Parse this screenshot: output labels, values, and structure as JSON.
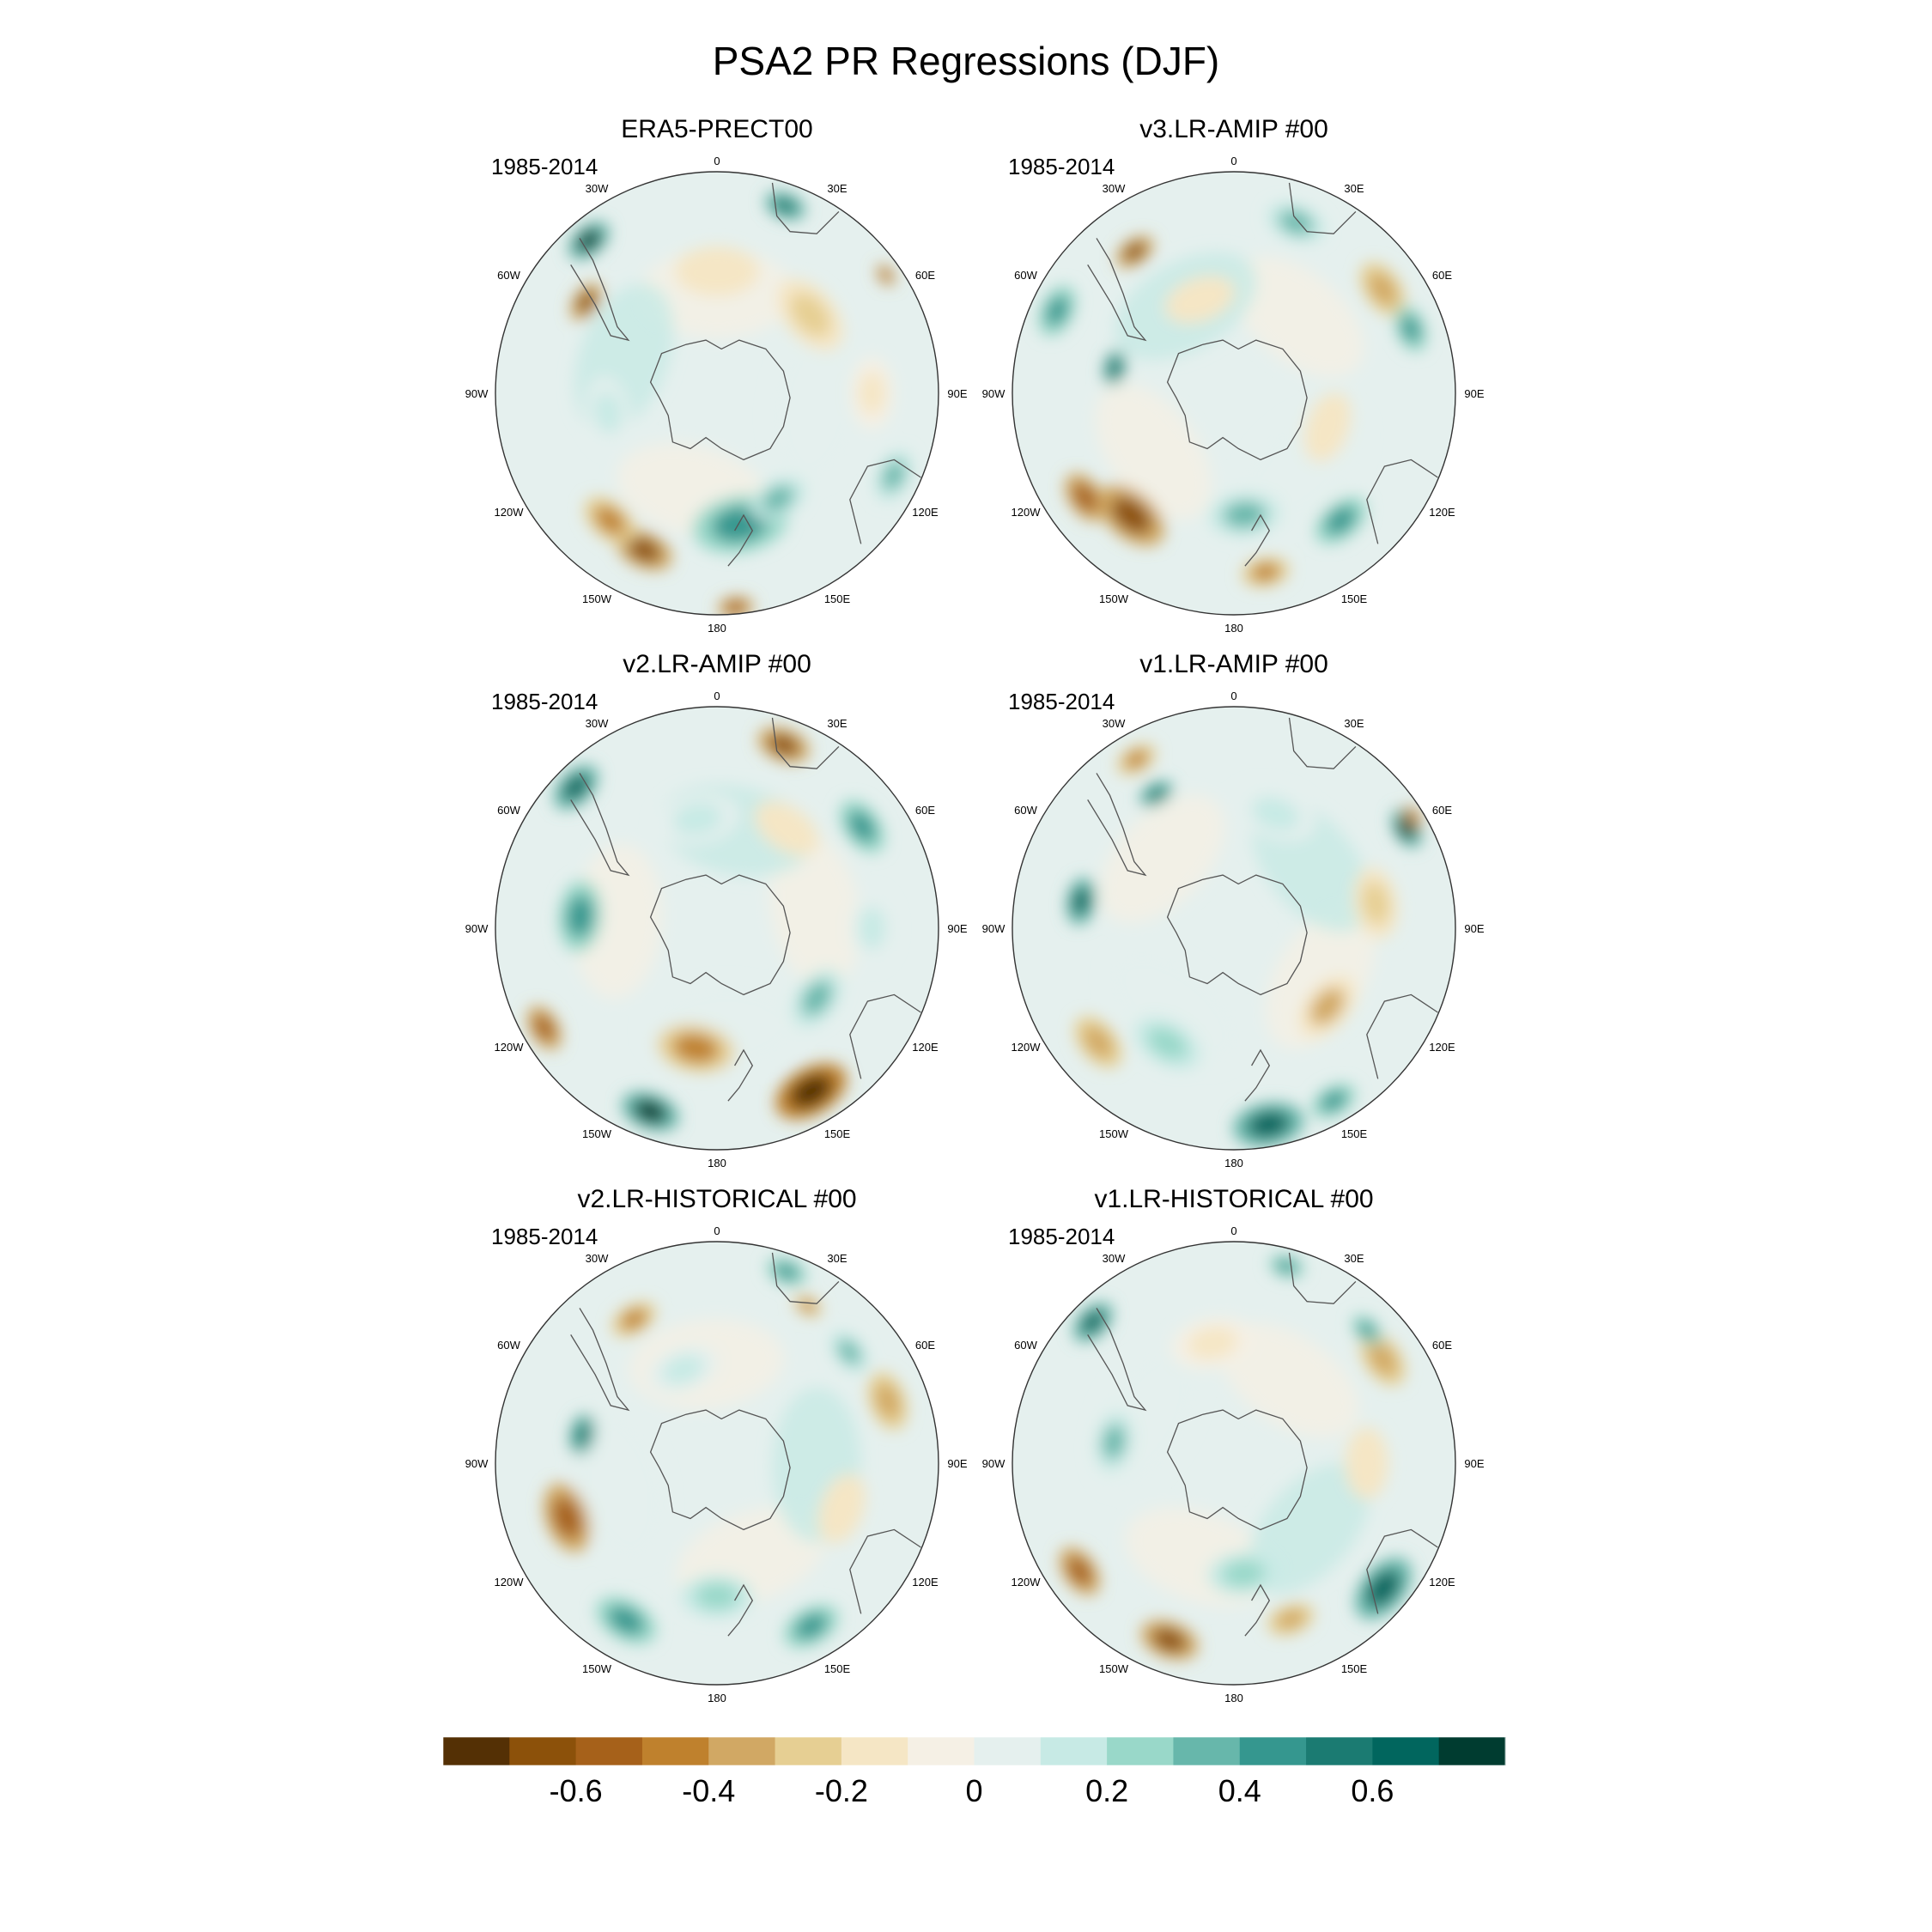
{
  "figure": {
    "title": "PSA2 PR Regressions (DJF)"
  },
  "chart_data": {
    "type": "heatmap",
    "projection": "south-polar-stereographic",
    "variable": "PR regression on PSA2",
    "season": "DJF",
    "longitude_labels": [
      "0",
      "30E",
      "60E",
      "90E",
      "120E",
      "150E",
      "180",
      "150W",
      "120W",
      "90W",
      "60W",
      "30W"
    ],
    "panels": [
      {
        "title": "ERA5-PRECT00",
        "period": "1985-2014",
        "features": [
          {
            "lon": -40,
            "r": 0.9,
            "size": 0.08,
            "value": 0.7
          },
          {
            "lon": -55,
            "r": 0.72,
            "size": 0.07,
            "value": -0.7
          },
          {
            "lon": 20,
            "r": 0.9,
            "size": 0.07,
            "value": 0.55
          },
          {
            "lon": 55,
            "r": 0.93,
            "size": 0.04,
            "value": -0.6
          },
          {
            "lon": -155,
            "r": 0.78,
            "size": 0.1,
            "value": -0.7
          },
          {
            "lon": -140,
            "r": 0.75,
            "size": 0.1,
            "value": -0.45
          },
          {
            "lon": 170,
            "r": 0.6,
            "size": 0.16,
            "value": 0.45
          },
          {
            "lon": 150,
            "r": 0.55,
            "size": 0.1,
            "value": 0.35
          },
          {
            "lon": 115,
            "r": 0.88,
            "size": 0.09,
            "value": 0.3
          },
          {
            "lon": 50,
            "r": 0.55,
            "size": 0.14,
            "value": -0.25
          },
          {
            "lon": 0,
            "r": 0.55,
            "size": 0.14,
            "value": -0.2
          },
          {
            "lon": -100,
            "r": 0.5,
            "size": 0.12,
            "value": 0.15
          },
          {
            "lon": 90,
            "r": 0.7,
            "size": 0.12,
            "value": -0.15
          },
          {
            "lon": 175,
            "r": 0.97,
            "size": 0.06,
            "value": -0.6
          }
        ]
      },
      {
        "title": "v3.LR-AMIP  #00",
        "period": "1985-2014",
        "features": [
          {
            "lon": -35,
            "r": 0.78,
            "size": 0.07,
            "value": -0.7
          },
          {
            "lon": -65,
            "r": 0.88,
            "size": 0.09,
            "value": 0.45
          },
          {
            "lon": -78,
            "r": 0.55,
            "size": 0.06,
            "value": 0.6
          },
          {
            "lon": -140,
            "r": 0.72,
            "size": 0.13,
            "value": -0.7
          },
          {
            "lon": -125,
            "r": 0.82,
            "size": 0.09,
            "value": -0.55
          },
          {
            "lon": 170,
            "r": 0.82,
            "size": 0.08,
            "value": -0.5
          },
          {
            "lon": 175,
            "r": 0.55,
            "size": 0.12,
            "value": 0.3
          },
          {
            "lon": 140,
            "r": 0.75,
            "size": 0.1,
            "value": 0.45
          },
          {
            "lon": 55,
            "r": 0.82,
            "size": 0.1,
            "value": -0.4
          },
          {
            "lon": 20,
            "r": 0.82,
            "size": 0.1,
            "value": 0.3
          },
          {
            "lon": 70,
            "r": 0.85,
            "size": 0.08,
            "value": 0.4
          },
          {
            "lon": -20,
            "r": 0.45,
            "size": 0.12,
            "value": -0.2
          },
          {
            "lon": 110,
            "r": 0.45,
            "size": 0.12,
            "value": -0.2
          }
        ]
      },
      {
        "title": "v2.LR-AMIP  #00",
        "period": "1985-2014",
        "features": [
          {
            "lon": -45,
            "r": 0.9,
            "size": 0.09,
            "value": 0.6
          },
          {
            "lon": 20,
            "r": 0.88,
            "size": 0.09,
            "value": -0.65
          },
          {
            "lon": 55,
            "r": 0.8,
            "size": 0.1,
            "value": 0.45
          },
          {
            "lon": -85,
            "r": 0.62,
            "size": 0.12,
            "value": 0.45
          },
          {
            "lon": -120,
            "r": 0.9,
            "size": 0.08,
            "value": -0.55
          },
          {
            "lon": -160,
            "r": 0.88,
            "size": 0.1,
            "value": 0.7
          },
          {
            "lon": -170,
            "r": 0.55,
            "size": 0.13,
            "value": -0.45
          },
          {
            "lon": 150,
            "r": 0.85,
            "size": 0.13,
            "value": -0.75
          },
          {
            "lon": 125,
            "r": 0.55,
            "size": 0.11,
            "value": 0.35
          },
          {
            "lon": 35,
            "r": 0.55,
            "size": 0.12,
            "value": -0.2
          },
          {
            "lon": -10,
            "r": 0.5,
            "size": 0.14,
            "value": 0.15
          },
          {
            "lon": 90,
            "r": 0.7,
            "size": 0.12,
            "value": 0.15
          }
        ]
      },
      {
        "title": "v1.LR-AMIP  #00",
        "period": "1985-2014",
        "features": [
          {
            "lon": -30,
            "r": 0.88,
            "size": 0.07,
            "value": -0.45
          },
          {
            "lon": -30,
            "r": 0.7,
            "size": 0.06,
            "value": 0.55
          },
          {
            "lon": 60,
            "r": 0.9,
            "size": 0.07,
            "value": 0.7
          },
          {
            "lon": 58,
            "r": 0.95,
            "size": 0.04,
            "value": -0.6
          },
          {
            "lon": -80,
            "r": 0.7,
            "size": 0.08,
            "value": 0.6
          },
          {
            "lon": -130,
            "r": 0.8,
            "size": 0.1,
            "value": -0.4
          },
          {
            "lon": 170,
            "r": 0.9,
            "size": 0.12,
            "value": 0.6
          },
          {
            "lon": 150,
            "r": 0.9,
            "size": 0.08,
            "value": 0.4
          },
          {
            "lon": 130,
            "r": 0.55,
            "size": 0.12,
            "value": -0.35
          },
          {
            "lon": 80,
            "r": 0.65,
            "size": 0.12,
            "value": -0.3
          },
          {
            "lon": -150,
            "r": 0.6,
            "size": 0.12,
            "value": 0.25
          },
          {
            "lon": 20,
            "r": 0.55,
            "size": 0.14,
            "value": 0.15
          }
        ]
      },
      {
        "title": "v2.LR-HISTORICAL  #00",
        "period": "1985-2014",
        "features": [
          {
            "lon": -30,
            "r": 0.75,
            "size": 0.08,
            "value": -0.45
          },
          {
            "lon": 20,
            "r": 0.92,
            "size": 0.07,
            "value": 0.45
          },
          {
            "lon": 30,
            "r": 0.82,
            "size": 0.05,
            "value": -0.5
          },
          {
            "lon": 70,
            "r": 0.82,
            "size": 0.1,
            "value": -0.4
          },
          {
            "lon": 50,
            "r": 0.78,
            "size": 0.08,
            "value": 0.35
          },
          {
            "lon": -78,
            "r": 0.62,
            "size": 0.07,
            "value": 0.55
          },
          {
            "lon": -110,
            "r": 0.72,
            "size": 0.12,
            "value": -0.55
          },
          {
            "lon": -150,
            "r": 0.82,
            "size": 0.11,
            "value": 0.4
          },
          {
            "lon": 150,
            "r": 0.85,
            "size": 0.1,
            "value": 0.45
          },
          {
            "lon": -180,
            "r": 0.6,
            "size": 0.12,
            "value": 0.25
          },
          {
            "lon": 110,
            "r": 0.6,
            "size": 0.12,
            "value": -0.2
          },
          {
            "lon": -20,
            "r": 0.45,
            "size": 0.12,
            "value": 0.15
          }
        ]
      },
      {
        "title": "v1.LR-HISTORICAL  #00",
        "period": "1985-2014",
        "features": [
          {
            "lon": -45,
            "r": 0.9,
            "size": 0.08,
            "value": 0.65
          },
          {
            "lon": 15,
            "r": 0.92,
            "size": 0.06,
            "value": 0.4
          },
          {
            "lon": 55,
            "r": 0.82,
            "size": 0.1,
            "value": -0.4
          },
          {
            "lon": 45,
            "r": 0.85,
            "size": 0.06,
            "value": 0.45
          },
          {
            "lon": -125,
            "r": 0.85,
            "size": 0.09,
            "value": -0.55
          },
          {
            "lon": -160,
            "r": 0.85,
            "size": 0.1,
            "value": -0.7
          },
          {
            "lon": 130,
            "r": 0.88,
            "size": 0.12,
            "value": 0.6
          },
          {
            "lon": 160,
            "r": 0.75,
            "size": 0.08,
            "value": -0.4
          },
          {
            "lon": -80,
            "r": 0.55,
            "size": 0.1,
            "value": 0.35
          },
          {
            "lon": 90,
            "r": 0.6,
            "size": 0.12,
            "value": -0.2
          },
          {
            "lon": -10,
            "r": 0.55,
            "size": 0.14,
            "value": -0.15
          },
          {
            "lon": 175,
            "r": 0.5,
            "size": 0.12,
            "value": 0.25
          }
        ]
      }
    ],
    "colorbar": {
      "levels": [
        -0.7,
        -0.6,
        -0.5,
        -0.4,
        -0.3,
        -0.2,
        -0.1,
        0,
        0.1,
        0.2,
        0.3,
        0.4,
        0.5,
        0.6,
        0.7
      ],
      "colors": [
        "#543005",
        "#8c510a",
        "#a6611a",
        "#bf812d",
        "#d1a864",
        "#e6cf93",
        "#f5e6c5",
        "#f5f0e5",
        "#e5f0ee",
        "#c7eae5",
        "#99d8c9",
        "#67b7ab",
        "#35978f",
        "#1b7b72",
        "#01665e",
        "#003c30"
      ],
      "tick_labels": [
        "-0.6",
        "-0.4",
        "-0.2",
        "0",
        "0.2",
        "0.4",
        "0.6"
      ],
      "tick_values": [
        -0.6,
        -0.4,
        -0.2,
        0,
        0.2,
        0.4,
        0.6
      ]
    }
  }
}
